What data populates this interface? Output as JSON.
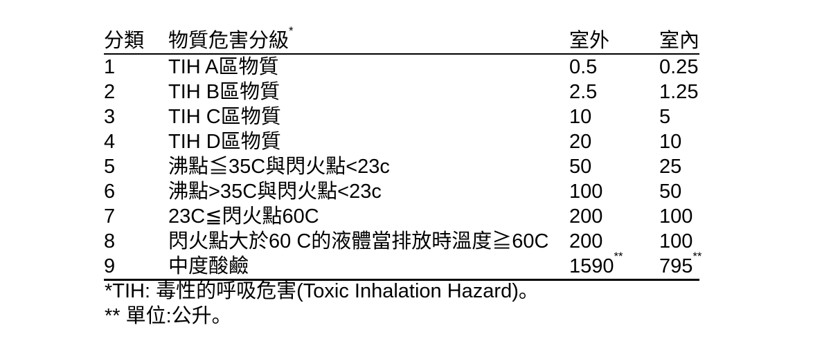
{
  "page": {
    "background": "#ffffff",
    "text_color": "#000000"
  },
  "table": {
    "headers": {
      "category": "分類",
      "description": "物質危害分級",
      "description_sup": "*",
      "outdoor": "室外",
      "indoor": "室內"
    },
    "rows": [
      {
        "category": "1",
        "description": "TIH A區物質",
        "outdoor": "0.5",
        "outdoor_sup": "",
        "indoor": "0.25",
        "indoor_sup": ""
      },
      {
        "category": "2",
        "description": "TIH B區物質",
        "outdoor": "2.5",
        "outdoor_sup": "",
        "indoor": "1.25",
        "indoor_sup": ""
      },
      {
        "category": "3",
        "description": "TIH C區物質",
        "outdoor": "10",
        "outdoor_sup": "",
        "indoor": "5",
        "indoor_sup": ""
      },
      {
        "category": "4",
        "description": "TIH D區物質",
        "outdoor": "20",
        "outdoor_sup": "",
        "indoor": "10",
        "indoor_sup": ""
      },
      {
        "category": "5",
        "description": "沸點≦35C與閃火點<23c",
        "outdoor": "50",
        "outdoor_sup": "",
        "indoor": "25",
        "indoor_sup": ""
      },
      {
        "category": "6",
        "description": "沸點>35C與閃火點<23c",
        "outdoor": "100",
        "outdoor_sup": "",
        "indoor": "50",
        "indoor_sup": ""
      },
      {
        "category": "7",
        "description": "23C≦閃火點60C",
        "outdoor": "200",
        "outdoor_sup": "",
        "indoor": "100",
        "indoor_sup": ""
      },
      {
        "category": "8",
        "description": "閃火點大於60 C的液體當排放時溫度≧60C",
        "outdoor": "200",
        "outdoor_sup": "",
        "indoor": "100",
        "indoor_sup": ""
      },
      {
        "category": "9",
        "description": "中度酸鹼",
        "outdoor": "1590",
        "outdoor_sup": "**",
        "indoor": "795",
        "indoor_sup": "**"
      }
    ]
  },
  "footnotes": {
    "tih": "*TIH: 毒性的呼吸危害(Toxic Inhalation Hazard)。",
    "unit": "** 單位:公升。"
  }
}
